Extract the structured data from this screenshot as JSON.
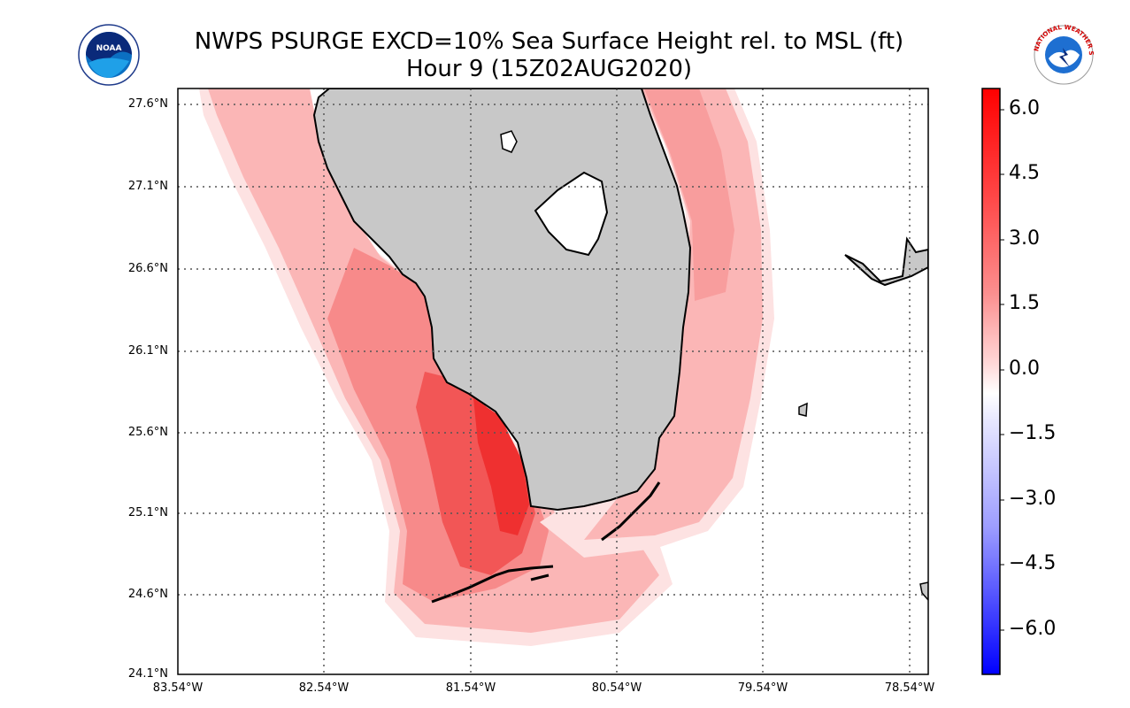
{
  "title_line1": "NWPS PSURGE EXCD=10% Sea Surface Height rel. to MSL (ft)",
  "title_line2": "Hour 9 (15Z02AUG2020)",
  "logos": {
    "left": "noaa-logo",
    "left_text": "NOAA",
    "right": "nws-logo",
    "right_text": "NATIONAL WEATHER SERVICE"
  },
  "lat_labels": [
    "27.6°N",
    "27.1°N",
    "26.6°N",
    "26.1°N",
    "25.6°N",
    "25.1°N",
    "24.6°N",
    "24.1°N"
  ],
  "lon_labels": [
    "83.54°W",
    "82.54°W",
    "81.54°W",
    "80.54°W",
    "79.54°W",
    "78.54°W"
  ],
  "colorbar": {
    "labels": [
      "6.0",
      "4.5",
      "3.0",
      "1.5",
      "0.0",
      "−1.5",
      "−3.0",
      "−4.5",
      "−6.0"
    ],
    "range": [
      -7,
      6.5
    ],
    "colors": {
      "max": "#ff0000",
      "mid": "#ffffff",
      "min": "#0000ff"
    }
  },
  "colors": {
    "land": "#c8c8c8",
    "lake": "#ffffff",
    "coast": "#000000",
    "surge_high": "#ff3b3b",
    "surge_mid": "#f77f7f",
    "surge_low": "#fbb3b3",
    "surge_faint": "#fdd6d6"
  }
}
